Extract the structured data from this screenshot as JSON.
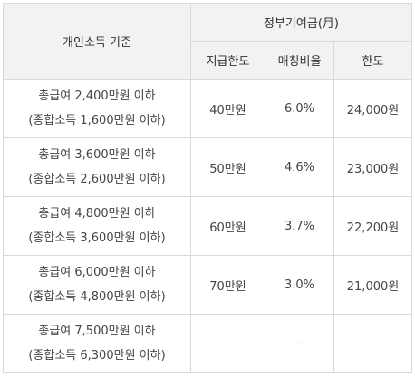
{
  "table": {
    "header": {
      "criteria": "개인소득 기준",
      "group": "정부기여금(月)",
      "columns": [
        "지급한도",
        "매칭비율",
        "한도"
      ]
    },
    "rows": [
      {
        "line1": "총급여 2,400만원 이하",
        "line2": "(종합소득 1,600만원 이하)",
        "limit": "40만원",
        "ratio": "6.0%",
        "cap": "24,000원"
      },
      {
        "line1": "총급여 3,600만원 이하",
        "line2": "(종합소득 2,600만원 이하)",
        "limit": "50만원",
        "ratio": "4.6%",
        "cap": "23,000원"
      },
      {
        "line1": "총급여 4,800만원 이하",
        "line2": "(종합소득 3,600만원 이하)",
        "limit": "60만원",
        "ratio": "3.7%",
        "cap": "22,200원"
      },
      {
        "line1": "총급여 6,000만원 이하",
        "line2": "(종합소득 4,800만원 이하)",
        "limit": "70만원",
        "ratio": "3.0%",
        "cap": "21,000원"
      },
      {
        "line1": "총급여 7,500만원 이하",
        "line2": "(종합소득 6,300만원 이하)",
        "limit": "-",
        "ratio": "-",
        "cap": "-"
      }
    ]
  }
}
